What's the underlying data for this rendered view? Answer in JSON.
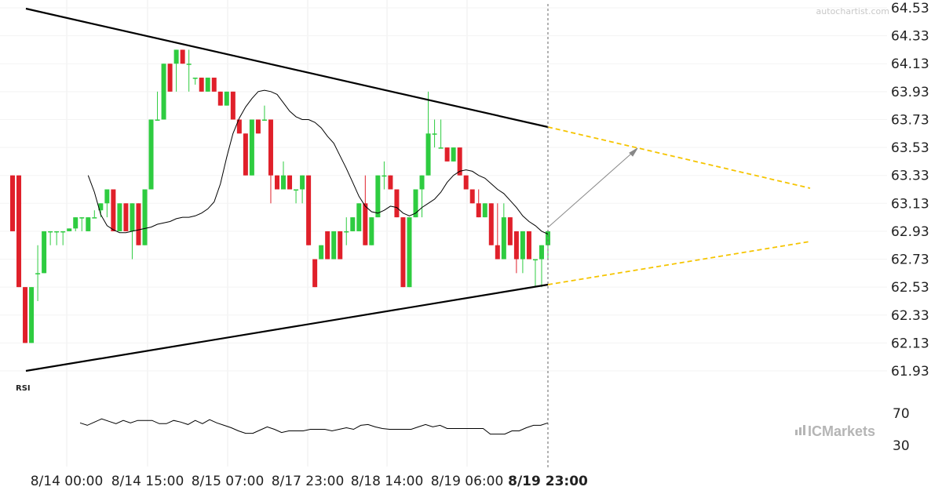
{
  "watermark": "autochartist.com",
  "logo_text": "ICMarkets",
  "colors": {
    "up": "#2ecc40",
    "down": "#e0202a",
    "trendline": "#000000",
    "projection": "#f5c400",
    "arrow": "#888888",
    "ma": "#000000",
    "vline": "#666666"
  },
  "chart_data": {
    "type": "candlestick",
    "title": "",
    "price_axis": {
      "ticks": [
        "64.53",
        "64.33",
        "64.13",
        "63.93",
        "63.73",
        "63.53",
        "63.33",
        "63.13",
        "62.93",
        "62.73",
        "62.53",
        "62.33",
        "62.13",
        "61.93"
      ],
      "range": [
        61.93,
        64.53
      ]
    },
    "time_axis": {
      "labels": [
        "8/14 00:00",
        "8/14 15:00",
        "8/15 07:00",
        "8/17 23:00",
        "8/18 14:00",
        "8/19 06:00",
        "8/19 23:00"
      ],
      "highlighted": "8/19 23:00"
    },
    "rsi": {
      "label": "RSI",
      "ticks": [
        "70",
        "30"
      ],
      "values": [
        58,
        55,
        59,
        63,
        60,
        57,
        61,
        58,
        61,
        61,
        61,
        57,
        57,
        61,
        59,
        56,
        61,
        57,
        62,
        58,
        55,
        52,
        48,
        45,
        45,
        49,
        53,
        50,
        46,
        48,
        48,
        48,
        50,
        50,
        50,
        48,
        50,
        52,
        50,
        55,
        56,
        53,
        51,
        50,
        50,
        50,
        50,
        53,
        56,
        53,
        55,
        51,
        51,
        51,
        51,
        51,
        51,
        44,
        44,
        44,
        48,
        48,
        52,
        55,
        55,
        58
      ]
    },
    "candles": [
      [
        63.33,
        63.33,
        62.93,
        62.93
      ],
      [
        63.33,
        63.33,
        62.53,
        62.53
      ],
      [
        62.53,
        62.53,
        62.13,
        62.13
      ],
      [
        62.13,
        62.53,
        62.13,
        62.53
      ],
      [
        62.63,
        62.83,
        62.43,
        62.63
      ],
      [
        62.63,
        62.93,
        62.63,
        62.93
      ],
      [
        62.93,
        62.93,
        62.83,
        62.93
      ],
      [
        62.93,
        62.93,
        62.83,
        62.93
      ],
      [
        62.93,
        62.93,
        62.83,
        62.93
      ],
      [
        62.93,
        62.95,
        62.93,
        62.95
      ],
      [
        62.95,
        63.03,
        62.93,
        63.03
      ],
      [
        63.03,
        63.03,
        62.93,
        63.03
      ],
      [
        62.93,
        63.03,
        62.93,
        63.03
      ],
      [
        63.03,
        63.08,
        63.03,
        63.03
      ],
      [
        63.08,
        63.13,
        63.03,
        63.13
      ],
      [
        63.13,
        63.23,
        63.03,
        63.23
      ],
      [
        63.23,
        63.23,
        62.93,
        62.93
      ],
      [
        62.93,
        63.13,
        62.93,
        63.13
      ],
      [
        63.13,
        63.13,
        62.93,
        62.93
      ],
      [
        62.93,
        63.13,
        62.73,
        63.13
      ],
      [
        63.13,
        63.13,
        62.83,
        62.83
      ],
      [
        62.83,
        63.23,
        62.83,
        63.23
      ],
      [
        63.23,
        63.73,
        63.23,
        63.73
      ],
      [
        63.73,
        63.93,
        63.73,
        63.73
      ],
      [
        63.73,
        64.13,
        63.73,
        64.13
      ],
      [
        64.13,
        64.13,
        63.93,
        63.93
      ],
      [
        64.13,
        64.23,
        63.93,
        64.23
      ],
      [
        64.23,
        64.23,
        64.13,
        64.13
      ],
      [
        64.13,
        64.23,
        63.93,
        64.13
      ],
      [
        64.03,
        64.03,
        63.98,
        64.03
      ],
      [
        64.03,
        64.03,
        63.93,
        63.93
      ],
      [
        63.93,
        64.03,
        63.93,
        64.03
      ],
      [
        64.03,
        64.03,
        63.93,
        63.93
      ],
      [
        63.93,
        63.93,
        63.83,
        63.83
      ],
      [
        63.83,
        63.93,
        63.83,
        63.93
      ],
      [
        63.93,
        63.93,
        63.73,
        63.73
      ],
      [
        63.73,
        63.73,
        63.63,
        63.63
      ],
      [
        63.63,
        63.63,
        63.33,
        63.33
      ],
      [
        63.33,
        63.73,
        63.33,
        63.73
      ],
      [
        63.73,
        63.73,
        63.63,
        63.63
      ],
      [
        63.73,
        63.83,
        63.73,
        63.73
      ],
      [
        63.73,
        63.73,
        63.13,
        63.33
      ],
      [
        63.33,
        63.33,
        63.23,
        63.23
      ],
      [
        63.23,
        63.43,
        63.23,
        63.33
      ],
      [
        63.33,
        63.33,
        63.23,
        63.23
      ],
      [
        63.23,
        63.23,
        63.13,
        63.23
      ],
      [
        63.23,
        63.33,
        63.13,
        63.33
      ],
      [
        63.33,
        63.33,
        62.83,
        62.83
      ],
      [
        62.73,
        62.73,
        62.53,
        62.53
      ],
      [
        62.73,
        62.83,
        62.73,
        62.83
      ],
      [
        62.93,
        62.93,
        62.73,
        62.73
      ],
      [
        62.73,
        62.93,
        62.73,
        62.93
      ],
      [
        62.93,
        62.93,
        62.73,
        62.73
      ],
      [
        62.93,
        63.03,
        62.83,
        62.93
      ],
      [
        62.93,
        63.03,
        62.93,
        63.03
      ],
      [
        62.93,
        63.13,
        62.93,
        63.13
      ],
      [
        63.13,
        63.33,
        62.83,
        62.83
      ],
      [
        62.83,
        63.03,
        62.83,
        63.03
      ],
      [
        63.03,
        63.33,
        63.03,
        63.33
      ],
      [
        63.33,
        63.43,
        63.23,
        63.33
      ],
      [
        63.33,
        63.33,
        63.23,
        63.23
      ],
      [
        63.23,
        63.23,
        63.03,
        63.03
      ],
      [
        63.03,
        63.03,
        62.53,
        62.53
      ],
      [
        62.53,
        63.03,
        62.53,
        63.03
      ],
      [
        63.03,
        63.23,
        63.03,
        63.23
      ],
      [
        63.23,
        63.33,
        63.03,
        63.33
      ],
      [
        63.33,
        63.93,
        63.33,
        63.63
      ],
      [
        63.63,
        63.73,
        63.53,
        63.63
      ],
      [
        63.53,
        63.73,
        63.53,
        63.53
      ],
      [
        63.53,
        63.53,
        63.43,
        63.43
      ],
      [
        63.43,
        63.53,
        63.43,
        63.53
      ],
      [
        63.53,
        63.53,
        63.33,
        63.33
      ],
      [
        63.33,
        63.33,
        63.23,
        63.23
      ],
      [
        63.23,
        63.23,
        63.13,
        63.13
      ],
      [
        63.13,
        63.23,
        63.03,
        63.03
      ],
      [
        63.03,
        63.13,
        63.03,
        63.13
      ],
      [
        63.13,
        63.13,
        62.83,
        62.83
      ],
      [
        62.83,
        63.13,
        62.73,
        62.73
      ],
      [
        62.73,
        63.13,
        62.73,
        63.03
      ],
      [
        63.03,
        63.03,
        62.83,
        62.83
      ],
      [
        62.93,
        62.93,
        62.63,
        62.73
      ],
      [
        62.73,
        62.93,
        62.63,
        62.93
      ],
      [
        62.93,
        62.93,
        62.73,
        62.73
      ],
      [
        62.73,
        62.73,
        62.53,
        62.73
      ],
      [
        62.73,
        62.83,
        62.53,
        62.83
      ],
      [
        62.83,
        62.93,
        62.73,
        62.93
      ]
    ],
    "ma": [
      63.33,
      63.21,
      63.05,
      62.97,
      62.94,
      62.92,
      62.92,
      62.93,
      62.94,
      62.95,
      62.96,
      62.98,
      62.99,
      63.0,
      63.02,
      63.03,
      63.03,
      63.04,
      63.06,
      63.09,
      63.14,
      63.27,
      63.46,
      63.63,
      63.74,
      63.82,
      63.88,
      63.93,
      63.94,
      63.93,
      63.91,
      63.85,
      63.79,
      63.75,
      63.73,
      63.73,
      63.71,
      63.67,
      63.61,
      63.56,
      63.47,
      63.38,
      63.28,
      63.18,
      63.11,
      63.07,
      63.06,
      63.08,
      63.11,
      63.1,
      63.06,
      63.04,
      63.06,
      63.1,
      63.13,
      63.16,
      63.21,
      63.28,
      63.33,
      63.36,
      63.37,
      63.36,
      63.33,
      63.31,
      63.27,
      63.23,
      63.2,
      63.15,
      63.1,
      63.04,
      63.0,
      62.97,
      62.93,
      62.91
    ]
  }
}
